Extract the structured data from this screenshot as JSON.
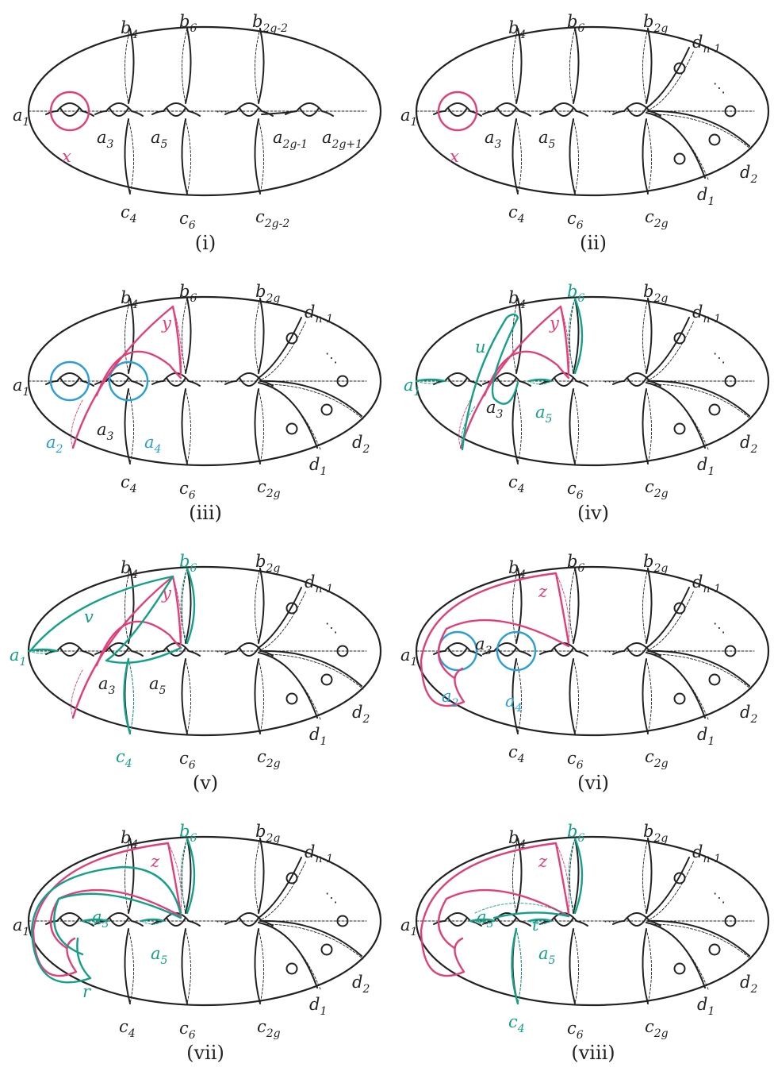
{
  "colors": {
    "ink": "#222222",
    "pink": "#e0407a",
    "green": "#14a088",
    "blue": "#2a9fd6"
  },
  "panels": [
    {
      "caption": "(i)",
      "variant": "first",
      "labels": [
        {
          "t": "a",
          "s": "1",
          "c": "ink"
        },
        {
          "t": "a",
          "s": "3",
          "c": "ink"
        },
        {
          "t": "a",
          "s": "5",
          "c": "ink"
        },
        {
          "t": "a",
          "s": "2g-1",
          "c": "ink"
        },
        {
          "t": "a",
          "s": "2g+1",
          "c": "ink"
        },
        {
          "t": "b",
          "s": "4",
          "c": "ink"
        },
        {
          "t": "b",
          "s": "6",
          "c": "ink"
        },
        {
          "t": "b",
          "s": "2g-2",
          "c": "ink"
        },
        {
          "t": "c",
          "s": "4",
          "c": "ink"
        },
        {
          "t": "c",
          "s": "6",
          "c": "ink"
        },
        {
          "t": "c",
          "s": "2g-2",
          "c": "ink"
        },
        {
          "t": "x",
          "s": "",
          "c": "pink"
        }
      ],
      "curves": [
        "x"
      ]
    },
    {
      "caption": "(ii)",
      "variant": "disk",
      "labels": [
        {
          "t": "a",
          "s": "1",
          "c": "ink"
        },
        {
          "t": "a",
          "s": "3",
          "c": "ink"
        },
        {
          "t": "a",
          "s": "5",
          "c": "ink"
        },
        {
          "t": "b",
          "s": "4",
          "c": "ink"
        },
        {
          "t": "b",
          "s": "6",
          "c": "ink"
        },
        {
          "t": "b",
          "s": "2g",
          "c": "ink"
        },
        {
          "t": "c",
          "s": "4",
          "c": "ink"
        },
        {
          "t": "c",
          "s": "6",
          "c": "ink"
        },
        {
          "t": "c",
          "s": "2g",
          "c": "ink"
        },
        {
          "t": "d",
          "s": "n-1",
          "c": "ink"
        },
        {
          "t": "d",
          "s": "1",
          "c": "ink"
        },
        {
          "t": "d",
          "s": "2",
          "c": "ink"
        },
        {
          "t": "x",
          "s": "",
          "c": "pink"
        }
      ],
      "curves": [
        "x"
      ]
    },
    {
      "caption": "(iii)",
      "variant": "disk",
      "labels": [
        {
          "t": "a",
          "s": "1",
          "c": "ink"
        },
        {
          "t": "a",
          "s": "2",
          "c": "blue"
        },
        {
          "t": "a",
          "s": "3",
          "c": "ink"
        },
        {
          "t": "a",
          "s": "4",
          "c": "blue"
        },
        {
          "t": "b",
          "s": "4",
          "c": "ink"
        },
        {
          "t": "b",
          "s": "6",
          "c": "ink"
        },
        {
          "t": "b",
          "s": "2g",
          "c": "ink"
        },
        {
          "t": "c",
          "s": "4",
          "c": "ink"
        },
        {
          "t": "c",
          "s": "6",
          "c": "ink"
        },
        {
          "t": "c",
          "s": "2g",
          "c": "ink"
        },
        {
          "t": "d",
          "s": "n-1",
          "c": "ink"
        },
        {
          "t": "d",
          "s": "1",
          "c": "ink"
        },
        {
          "t": "d",
          "s": "2",
          "c": "ink"
        },
        {
          "t": "y",
          "s": "",
          "c": "pink"
        }
      ],
      "curves": [
        "a2",
        "a4",
        "y"
      ]
    },
    {
      "caption": "(iv)",
      "variant": "disk",
      "labels": [
        {
          "t": "a",
          "s": "1",
          "c": "green"
        },
        {
          "t": "a",
          "s": "3",
          "c": "ink"
        },
        {
          "t": "a",
          "s": "5",
          "c": "green"
        },
        {
          "t": "b",
          "s": "4",
          "c": "ink"
        },
        {
          "t": "b",
          "s": "6",
          "c": "green"
        },
        {
          "t": "b",
          "s": "2g",
          "c": "ink"
        },
        {
          "t": "c",
          "s": "4",
          "c": "ink"
        },
        {
          "t": "c",
          "s": "6",
          "c": "ink"
        },
        {
          "t": "c",
          "s": "2g",
          "c": "ink"
        },
        {
          "t": "d",
          "s": "n-1",
          "c": "ink"
        },
        {
          "t": "d",
          "s": "1",
          "c": "ink"
        },
        {
          "t": "d",
          "s": "2",
          "c": "ink"
        },
        {
          "t": "u",
          "s": "",
          "c": "green"
        },
        {
          "t": "y",
          "s": "",
          "c": "pink"
        }
      ],
      "curves": [
        "y",
        "u",
        "b6g",
        "a1g",
        "a5g"
      ]
    },
    {
      "caption": "(v)",
      "variant": "disk",
      "labels": [
        {
          "t": "a",
          "s": "1",
          "c": "green"
        },
        {
          "t": "a",
          "s": "3",
          "c": "ink"
        },
        {
          "t": "a",
          "s": "5",
          "c": "ink"
        },
        {
          "t": "b",
          "s": "4",
          "c": "ink"
        },
        {
          "t": "b",
          "s": "6",
          "c": "green"
        },
        {
          "t": "b",
          "s": "2g",
          "c": "ink"
        },
        {
          "t": "c",
          "s": "4",
          "c": "green"
        },
        {
          "t": "c",
          "s": "6",
          "c": "ink"
        },
        {
          "t": "c",
          "s": "2g",
          "c": "ink"
        },
        {
          "t": "d",
          "s": "n-1",
          "c": "ink"
        },
        {
          "t": "d",
          "s": "1",
          "c": "ink"
        },
        {
          "t": "d",
          "s": "2",
          "c": "ink"
        },
        {
          "t": "v",
          "s": "",
          "c": "green"
        },
        {
          "t": "y",
          "s": "",
          "c": "pink"
        }
      ],
      "curves": [
        "y",
        "v",
        "b6g",
        "a1g",
        "c4g"
      ]
    },
    {
      "caption": "(vi)",
      "variant": "disk",
      "labels": [
        {
          "t": "a",
          "s": "1",
          "c": "ink"
        },
        {
          "t": "a",
          "s": "2",
          "c": "blue"
        },
        {
          "t": "a",
          "s": "3",
          "c": "ink"
        },
        {
          "t": "a",
          "s": "4",
          "c": "blue"
        },
        {
          "t": "b",
          "s": "4",
          "c": "ink"
        },
        {
          "t": "b",
          "s": "6",
          "c": "ink"
        },
        {
          "t": "b",
          "s": "2g",
          "c": "ink"
        },
        {
          "t": "c",
          "s": "4",
          "c": "ink"
        },
        {
          "t": "c",
          "s": "6",
          "c": "ink"
        },
        {
          "t": "c",
          "s": "2g",
          "c": "ink"
        },
        {
          "t": "d",
          "s": "n-1",
          "c": "ink"
        },
        {
          "t": "d",
          "s": "1",
          "c": "ink"
        },
        {
          "t": "d",
          "s": "2",
          "c": "ink"
        },
        {
          "t": "z",
          "s": "",
          "c": "pink"
        }
      ],
      "curves": [
        "a2",
        "a4",
        "z"
      ]
    },
    {
      "caption": "(vii)",
      "variant": "disk",
      "labels": [
        {
          "t": "a",
          "s": "1",
          "c": "ink"
        },
        {
          "t": "a",
          "s": "3",
          "c": "green"
        },
        {
          "t": "a",
          "s": "5",
          "c": "green"
        },
        {
          "t": "b",
          "s": "4",
          "c": "ink"
        },
        {
          "t": "b",
          "s": "6",
          "c": "green"
        },
        {
          "t": "b",
          "s": "2g",
          "c": "ink"
        },
        {
          "t": "c",
          "s": "4",
          "c": "ink"
        },
        {
          "t": "c",
          "s": "6",
          "c": "ink"
        },
        {
          "t": "c",
          "s": "2g",
          "c": "ink"
        },
        {
          "t": "d",
          "s": "n-1",
          "c": "ink"
        },
        {
          "t": "d",
          "s": "1",
          "c": "ink"
        },
        {
          "t": "d",
          "s": "2",
          "c": "ink"
        },
        {
          "t": "r",
          "s": "",
          "c": "green"
        },
        {
          "t": "z",
          "s": "",
          "c": "pink"
        }
      ],
      "curves": [
        "z",
        "r",
        "b6g",
        "a3g",
        "a5g"
      ]
    },
    {
      "caption": "(viii)",
      "variant": "disk",
      "labels": [
        {
          "t": "a",
          "s": "1",
          "c": "ink"
        },
        {
          "t": "a",
          "s": "3",
          "c": "green"
        },
        {
          "t": "a",
          "s": "5",
          "c": "green"
        },
        {
          "t": "b",
          "s": "4",
          "c": "ink"
        },
        {
          "t": "b",
          "s": "6",
          "c": "green"
        },
        {
          "t": "b",
          "s": "2g",
          "c": "ink"
        },
        {
          "t": "c",
          "s": "4",
          "c": "green"
        },
        {
          "t": "c",
          "s": "6",
          "c": "ink"
        },
        {
          "t": "c",
          "s": "2g",
          "c": "ink"
        },
        {
          "t": "d",
          "s": "n-1",
          "c": "ink"
        },
        {
          "t": "d",
          "s": "1",
          "c": "ink"
        },
        {
          "t": "d",
          "s": "2",
          "c": "ink"
        },
        {
          "t": "t",
          "s": "",
          "c": "green"
        },
        {
          "t": "z",
          "s": "",
          "c": "pink"
        }
      ],
      "curves": [
        "z",
        "t",
        "b6g",
        "c4g",
        "a3g",
        "a5g"
      ]
    }
  ],
  "ellipsis": "···",
  "vdots": "⋱"
}
